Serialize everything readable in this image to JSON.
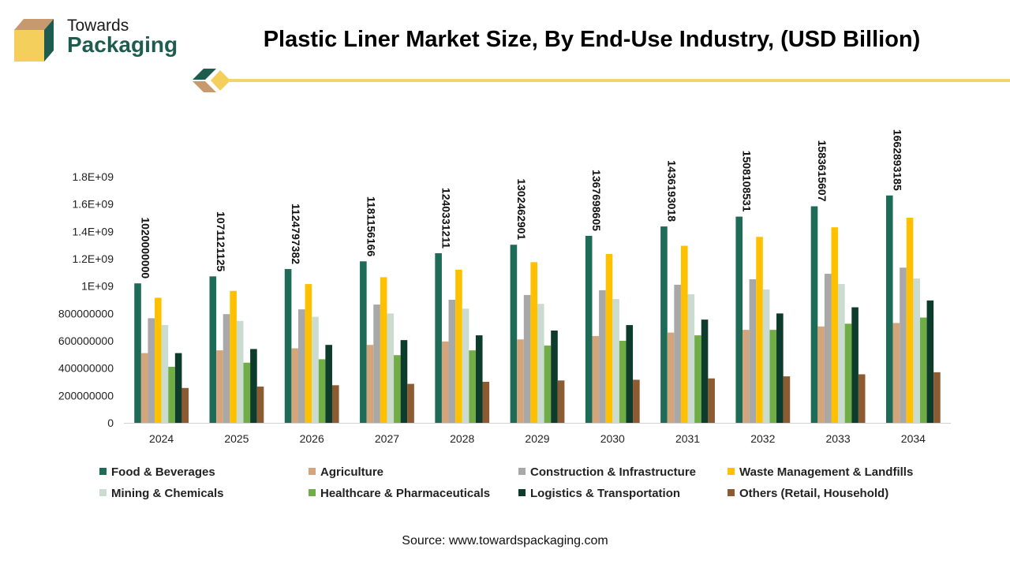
{
  "brand": {
    "line1": "Towards",
    "line2": "Packaging"
  },
  "title": "Plastic Liner Market Size, By End-Use Industry, (USD Billion)",
  "source": "Source: www.towardspackaging.com",
  "colors": {
    "brand_green": "#1e5c4f",
    "brand_tan": "#c69a6d",
    "brand_yellow": "#f5cf5c",
    "divider_yellow": "#f3d46b"
  },
  "chart_data": {
    "type": "bar",
    "title": "Plastic Liner Market Size, By End-Use Industry, (USD Billion)",
    "categories": [
      "2024",
      "2025",
      "2026",
      "2027",
      "2028",
      "2029",
      "2030",
      "2031",
      "2032",
      "2033",
      "2034"
    ],
    "ylim": [
      0,
      1800000000
    ],
    "yticks": [
      {
        "value": 0,
        "label": "0"
      },
      {
        "value": 200000000,
        "label": "200000000"
      },
      {
        "value": 400000000,
        "label": "400000000"
      },
      {
        "value": 600000000,
        "label": "600000000"
      },
      {
        "value": 800000000,
        "label": "800000000"
      },
      {
        "value": 1000000000,
        "label": "1E+09"
      },
      {
        "value": 1200000000,
        "label": "1.2E+09"
      },
      {
        "value": 1400000000,
        "label": "1.4E+09"
      },
      {
        "value": 1600000000,
        "label": "1.6E+09"
      },
      {
        "value": 1800000000,
        "label": "1.8E+09"
      }
    ],
    "grid": false,
    "legend": "bottom",
    "series": [
      {
        "name": "Food & Beverages",
        "color": "#1e6b58",
        "values": [
          1020000000,
          1071121125,
          1124797382,
          1181156166,
          1240331211,
          1302462901,
          1367698605,
          1436193018,
          1508108531,
          1583615607,
          1662893185
        ],
        "labels": [
          "1020000000",
          "1071121125",
          "1124797382",
          "1181156166",
          "1240331211",
          "1302462901",
          "1367698605",
          "1436193018",
          "1508108531",
          "1583615607",
          "1662893185"
        ]
      },
      {
        "name": "Agriculture",
        "color": "#d4a57a",
        "values": [
          510000000,
          530000000,
          545000000,
          570000000,
          595000000,
          610000000,
          635000000,
          660000000,
          680000000,
          705000000,
          730000000
        ]
      },
      {
        "name": "Construction & Infrastructure",
        "color": "#a8a8a8",
        "values": [
          765000000,
          795000000,
          830000000,
          865000000,
          900000000,
          935000000,
          970000000,
          1010000000,
          1050000000,
          1090000000,
          1135000000
        ]
      },
      {
        "name": "Waste Management & Landfills",
        "color": "#ffc000",
        "values": [
          915000000,
          965000000,
          1015000000,
          1065000000,
          1120000000,
          1175000000,
          1235000000,
          1295000000,
          1360000000,
          1430000000,
          1500000000
        ]
      },
      {
        "name": "Mining & Chemicals",
        "color": "#c9dccf",
        "values": [
          715000000,
          745000000,
          775000000,
          800000000,
          835000000,
          870000000,
          905000000,
          940000000,
          975000000,
          1015000000,
          1055000000
        ]
      },
      {
        "name": "Healthcare & Pharmaceuticals",
        "color": "#71ad47",
        "values": [
          410000000,
          440000000,
          465000000,
          495000000,
          530000000,
          565000000,
          600000000,
          640000000,
          680000000,
          725000000,
          770000000
        ]
      },
      {
        "name": "Logistics & Transportation",
        "color": "#0d3b2c",
        "values": [
          510000000,
          540000000,
          570000000,
          605000000,
          640000000,
          675000000,
          715000000,
          755000000,
          800000000,
          845000000,
          895000000
        ]
      },
      {
        "name": "Others (Retail, Household)",
        "color": "#8c5b32",
        "values": [
          255000000,
          265000000,
          275000000,
          285000000,
          300000000,
          310000000,
          315000000,
          325000000,
          340000000,
          355000000,
          370000000
        ]
      }
    ]
  }
}
